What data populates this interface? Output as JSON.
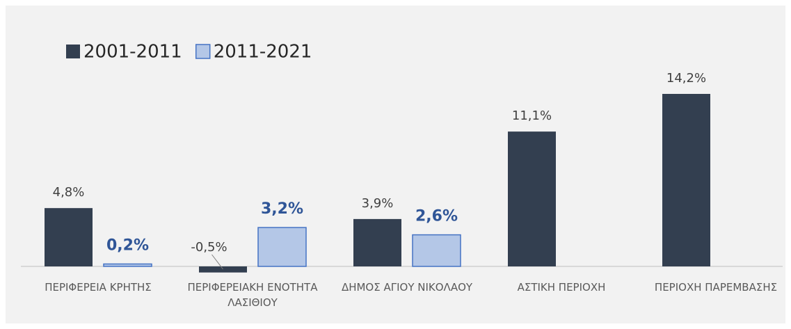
{
  "chart_data": {
    "type": "bar",
    "categories": [
      "ΠΕΡΙΦΕΡΕΙΑ ΚΡΗΤΗΣ",
      "ΠΕΡΙΦΕΡΕΙΑΚΗ ΕΝΟΤΗΤΑ ΛΑΣΙΘΙΟΥ",
      "ΔΗΜΟΣ ΑΓΙΟΥ ΝΙΚΟΛΑΟΥ",
      "ΑΣΤΙΚΗ ΠΕΡΙΟΧΗ",
      "ΠΕΡΙΟΧΗ ΠΑΡΕΜΒΑΣΗΣ"
    ],
    "series": [
      {
        "name": "2001-2011",
        "color": "#333f50",
        "values": [
          4.8,
          -0.5,
          3.9,
          11.1,
          14.2
        ],
        "value_labels": [
          "4,8%",
          "-0,5%",
          "3,9%",
          "11,1%",
          "14,2%"
        ]
      },
      {
        "name": "2011-2021",
        "color": "#b4c7e7",
        "values": [
          0.2,
          3.2,
          2.6,
          null,
          null
        ],
        "value_labels": [
          "0,2%",
          "3,2%",
          "2,6%",
          null,
          null
        ]
      }
    ],
    "legend": "top-left"
  }
}
